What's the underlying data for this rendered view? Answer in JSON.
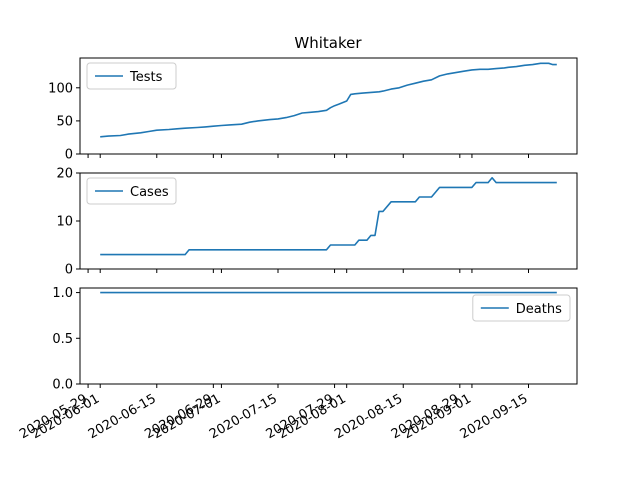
{
  "chart_data": {
    "type": "line",
    "title": "Whitaker",
    "x_tick_labels": [
      "2020-05-29",
      "2020-06-01",
      "2020-06-15",
      "2020-06-29",
      "2020-07-01",
      "2020-07-15",
      "2020-07-29",
      "2020-08-01",
      "2020-08-15",
      "2020-08-29",
      "2020-09-01",
      "2020-09-15"
    ],
    "panels": [
      {
        "series_name": "Tests",
        "ylim": [
          0,
          145
        ],
        "yticks": [
          0,
          50,
          100
        ],
        "legend": "upper-left",
        "points": [
          [
            "2020-06-01",
            26
          ],
          [
            "2020-06-03",
            27
          ],
          [
            "2020-06-06",
            28
          ],
          [
            "2020-06-08",
            30
          ],
          [
            "2020-06-11",
            32
          ],
          [
            "2020-06-13",
            34
          ],
          [
            "2020-06-15",
            36
          ],
          [
            "2020-06-18",
            37
          ],
          [
            "2020-06-20",
            38
          ],
          [
            "2020-06-22",
            39
          ],
          [
            "2020-06-25",
            40
          ],
          [
            "2020-06-27",
            41
          ],
          [
            "2020-06-29",
            42
          ],
          [
            "2020-07-01",
            43
          ],
          [
            "2020-07-03",
            44
          ],
          [
            "2020-07-06",
            45
          ],
          [
            "2020-07-08",
            48
          ],
          [
            "2020-07-10",
            50
          ],
          [
            "2020-07-13",
            52
          ],
          [
            "2020-07-15",
            53
          ],
          [
            "2020-07-17",
            55
          ],
          [
            "2020-07-19",
            58
          ],
          [
            "2020-07-21",
            62
          ],
          [
            "2020-07-23",
            63
          ],
          [
            "2020-07-25",
            64
          ],
          [
            "2020-07-27",
            66
          ],
          [
            "2020-07-28",
            70
          ],
          [
            "2020-07-29",
            73
          ],
          [
            "2020-07-30",
            75
          ],
          [
            "2020-08-01",
            80
          ],
          [
            "2020-08-02",
            90
          ],
          [
            "2020-08-03",
            91
          ],
          [
            "2020-08-05",
            92
          ],
          [
            "2020-08-07",
            93
          ],
          [
            "2020-08-09",
            94
          ],
          [
            "2020-08-10",
            95
          ],
          [
            "2020-08-12",
            98
          ],
          [
            "2020-08-14",
            100
          ],
          [
            "2020-08-16",
            104
          ],
          [
            "2020-08-18",
            107
          ],
          [
            "2020-08-20",
            110
          ],
          [
            "2020-08-22",
            112
          ],
          [
            "2020-08-24",
            118
          ],
          [
            "2020-08-26",
            121
          ],
          [
            "2020-08-28",
            123
          ],
          [
            "2020-08-30",
            125
          ],
          [
            "2020-09-01",
            127
          ],
          [
            "2020-09-03",
            128
          ],
          [
            "2020-09-05",
            128
          ],
          [
            "2020-09-07",
            129
          ],
          [
            "2020-09-09",
            130
          ],
          [
            "2020-09-10",
            131
          ],
          [
            "2020-09-12",
            132
          ],
          [
            "2020-09-14",
            134
          ],
          [
            "2020-09-16",
            135
          ],
          [
            "2020-09-18",
            137
          ],
          [
            "2020-09-20",
            137
          ],
          [
            "2020-09-21",
            135
          ],
          [
            "2020-09-22",
            135
          ]
        ]
      },
      {
        "series_name": "Cases",
        "ylim": [
          0,
          20
        ],
        "yticks": [
          0,
          10,
          20
        ],
        "legend": "upper-left",
        "points": [
          [
            "2020-06-01",
            3
          ],
          [
            "2020-06-22",
            3
          ],
          [
            "2020-06-23",
            4
          ],
          [
            "2020-07-27",
            4
          ],
          [
            "2020-07-28",
            5
          ],
          [
            "2020-08-03",
            5
          ],
          [
            "2020-08-04",
            6
          ],
          [
            "2020-08-06",
            6
          ],
          [
            "2020-08-07",
            7
          ],
          [
            "2020-08-08",
            7
          ],
          [
            "2020-08-09",
            12
          ],
          [
            "2020-08-10",
            12
          ],
          [
            "2020-08-12",
            14
          ],
          [
            "2020-08-18",
            14
          ],
          [
            "2020-08-19",
            15
          ],
          [
            "2020-08-22",
            15
          ],
          [
            "2020-08-24",
            17
          ],
          [
            "2020-09-01",
            17
          ],
          [
            "2020-09-02",
            18
          ],
          [
            "2020-09-05",
            18
          ],
          [
            "2020-09-06",
            19
          ],
          [
            "2020-09-07",
            18
          ],
          [
            "2020-09-22",
            18
          ]
        ]
      },
      {
        "series_name": "Deaths",
        "ylim": [
          0,
          1.05
        ],
        "yticks": [
          0,
          0.5,
          1.0
        ],
        "ytick_labels": [
          "0.0",
          "0.5",
          "1.0"
        ],
        "legend": "upper-right",
        "points": [
          [
            "2020-06-01",
            1
          ],
          [
            "2020-09-22",
            1
          ]
        ]
      }
    ]
  }
}
